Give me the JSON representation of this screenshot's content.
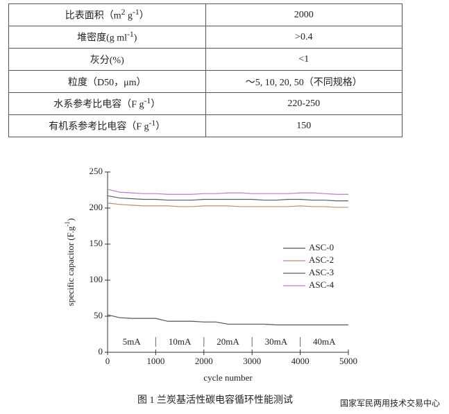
{
  "table": {
    "rows": [
      [
        [
          "比表面积（m",
          {
            "sup": "2"
          },
          " g",
          {
            "sup": "-1"
          },
          "）"
        ],
        [
          "2000"
        ]
      ],
      [
        [
          "堆密度(g ml",
          {
            "sup": "-1"
          },
          ")"
        ],
        [
          ">0.4"
        ]
      ],
      [
        [
          "灰分(%)"
        ],
        [
          "<1"
        ]
      ],
      [
        [
          "粒度（D50，μm）"
        ],
        [
          "～5, 10, 20, 50（不同规格）"
        ]
      ],
      [
        [
          "水系参考比电容（F g",
          {
            "sup": "-1"
          },
          "）"
        ],
        [
          "220-250"
        ]
      ],
      [
        [
          "有机系参考比电容（F g",
          {
            "sup": "-1"
          },
          "）"
        ],
        [
          "150"
        ]
      ]
    ]
  },
  "chart_data": {
    "type": "line",
    "x_label": "cycle number",
    "y_label": [
      "specific capacitor (F.g",
      {
        "sup": "-1"
      },
      ")"
    ],
    "x": [
      0,
      250,
      500,
      750,
      1000,
      1250,
      1500,
      1750,
      2000,
      2250,
      2500,
      2750,
      3000,
      3250,
      3500,
      3750,
      4000,
      4250,
      4500,
      4750,
      5000
    ],
    "series": [
      {
        "name": "ASC-0",
        "color": "#555555",
        "values": [
          52,
          48,
          47,
          47,
          47,
          43,
          43,
          43,
          42,
          42,
          39,
          39,
          39,
          39,
          38,
          38,
          38,
          38,
          38,
          38,
          38
        ]
      },
      {
        "name": "ASC-2",
        "color": "#c58a6a",
        "values": [
          207,
          205,
          204,
          203,
          203,
          203,
          202,
          202,
          203,
          203,
          203,
          202,
          202,
          202,
          202,
          202,
          203,
          202,
          202,
          201,
          201
        ]
      },
      {
        "name": "ASC-3",
        "color": "#5a5a66",
        "values": [
          217,
          214,
          213,
          212,
          212,
          211,
          211,
          211,
          212,
          212,
          212,
          212,
          212,
          211,
          211,
          212,
          212,
          211,
          211,
          210,
          210
        ]
      },
      {
        "name": "ASC-4",
        "color": "#c774d6",
        "values": [
          226,
          222,
          221,
          220,
          220,
          219,
          219,
          219,
          220,
          220,
          221,
          221,
          220,
          220,
          220,
          220,
          221,
          221,
          220,
          219,
          219
        ]
      }
    ],
    "xlim": [
      0,
      5000
    ],
    "xticks": [
      0,
      1000,
      2000,
      3000,
      4000,
      5000
    ],
    "ylim": [
      0,
      250
    ],
    "yticks": [
      0,
      50,
      100,
      150,
      200,
      250
    ],
    "current_labels": [
      "5mA",
      "10mA",
      "20mA",
      "30mA",
      "40mA"
    ]
  },
  "caption": "图 1  兰炭基活性碳电容循环性能测试",
  "watermark": "国家军民两用技术交易中心"
}
